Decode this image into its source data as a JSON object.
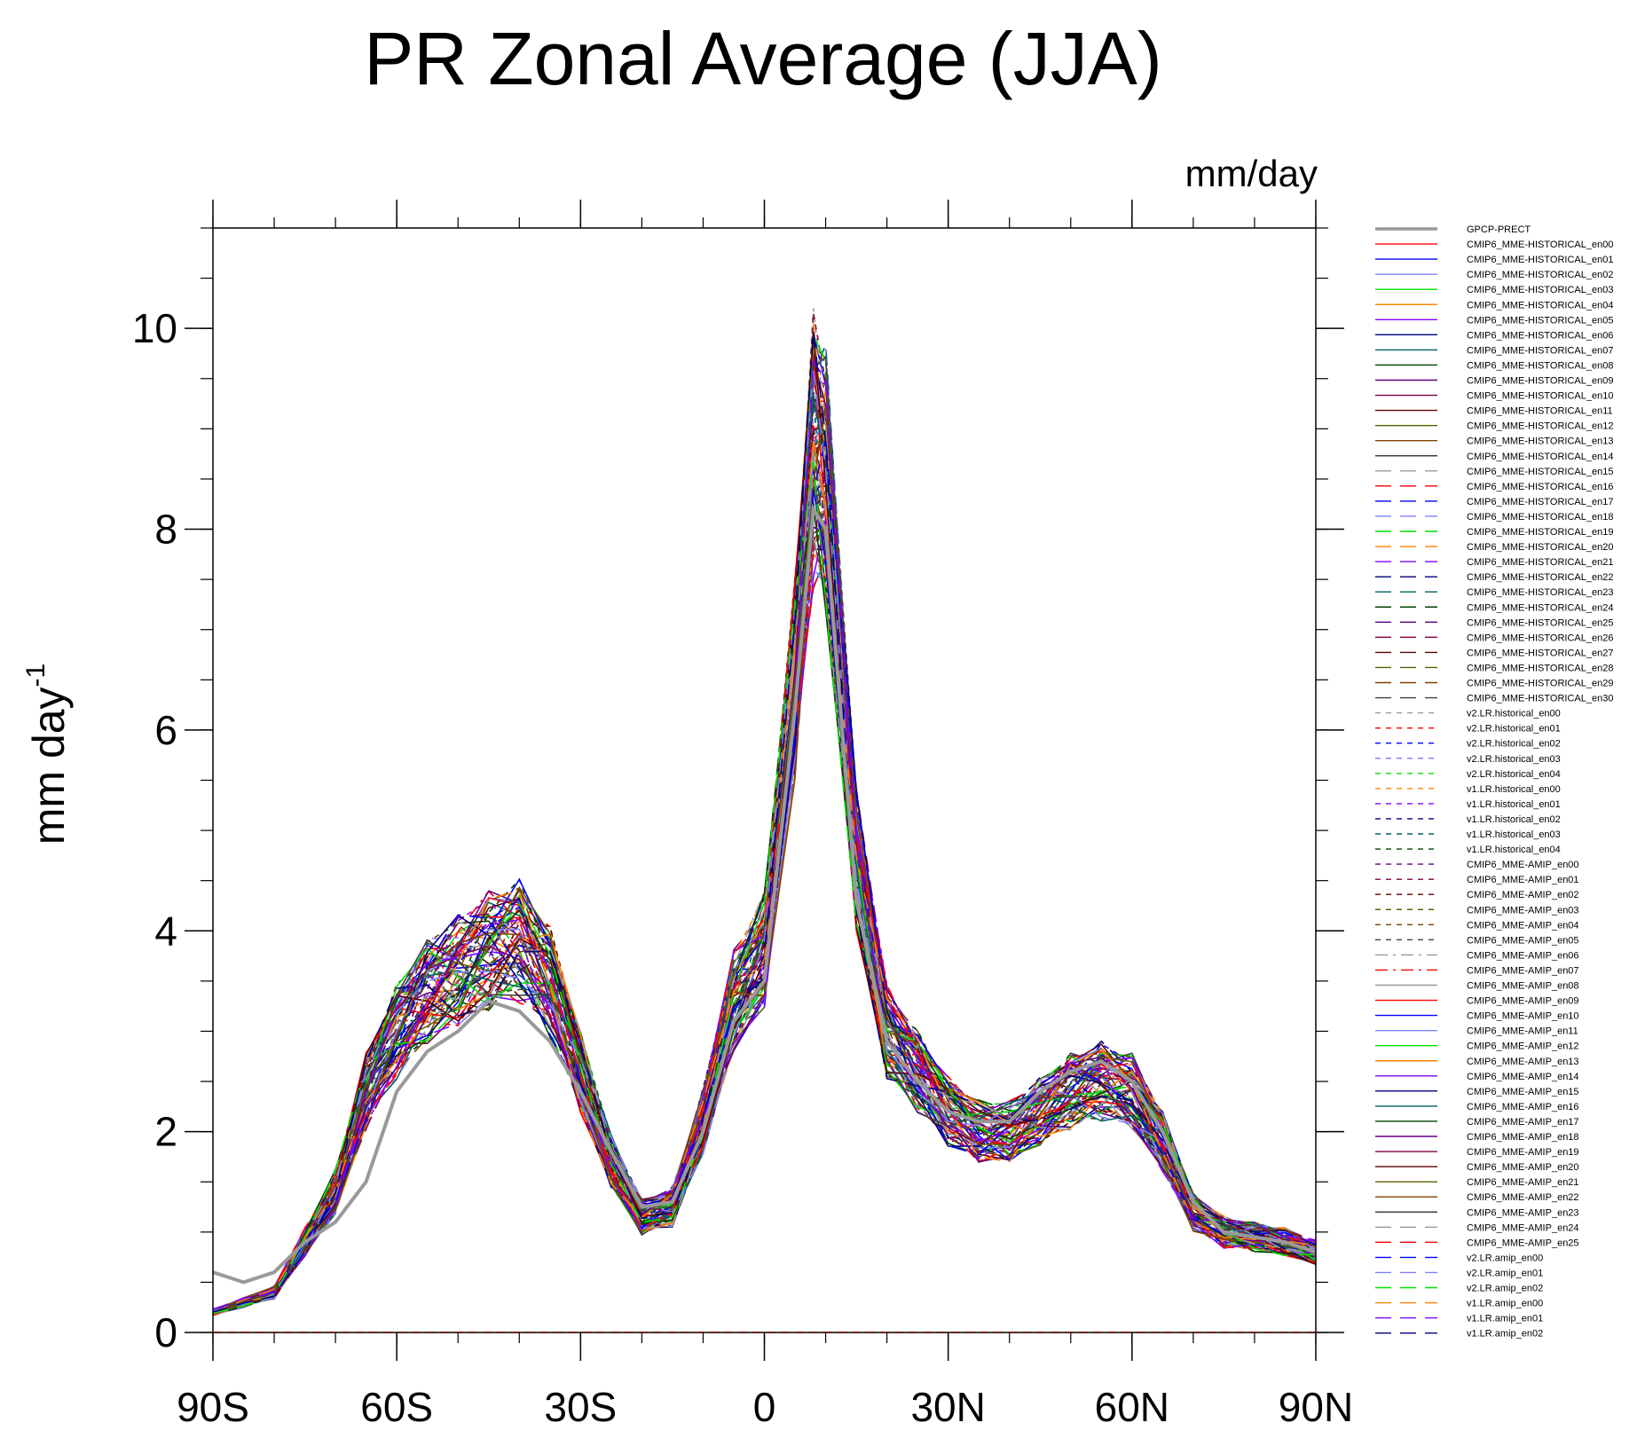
{
  "chart_data": {
    "type": "line",
    "title": "PR Zonal Average (JJA)",
    "units": "mm/day",
    "ylabel": "mm day",
    "ylabel_exponent": "-1",
    "xlabel": "",
    "xlim": [
      -90,
      90
    ],
    "ylim": [
      0,
      11
    ],
    "x_ticks": [
      {
        "value": -90,
        "label": "90S"
      },
      {
        "value": -60,
        "label": "60S"
      },
      {
        "value": -30,
        "label": "30S"
      },
      {
        "value": 0,
        "label": "0"
      },
      {
        "value": 30,
        "label": "30N"
      },
      {
        "value": 60,
        "label": "60N"
      },
      {
        "value": 90,
        "label": "90N"
      }
    ],
    "y_ticks": [
      {
        "value": 0,
        "label": "0"
      },
      {
        "value": 2,
        "label": "2"
      },
      {
        "value": 4,
        "label": "4"
      },
      {
        "value": 6,
        "label": "6"
      },
      {
        "value": 8,
        "label": "8"
      },
      {
        "value": 10,
        "label": "10"
      }
    ],
    "x": [
      -90,
      -85,
      -80,
      -75,
      -70,
      -65,
      -60,
      -55,
      -50,
      -45,
      -40,
      -35,
      -30,
      -25,
      -20,
      -15,
      -10,
      -5,
      0,
      5,
      8,
      10,
      15,
      20,
      25,
      30,
      35,
      40,
      45,
      50,
      55,
      60,
      65,
      70,
      75,
      80,
      85,
      90
    ],
    "base_profile": [
      0.2,
      0.3,
      0.4,
      0.9,
      1.4,
      2.4,
      3.0,
      3.4,
      3.6,
      3.8,
      3.9,
      3.5,
      2.6,
      1.7,
      1.15,
      1.25,
      2.1,
      3.3,
      3.8,
      6.5,
      8.8,
      8.5,
      4.7,
      3.0,
      2.6,
      2.2,
      2.0,
      2.0,
      2.2,
      2.4,
      2.5,
      2.4,
      1.9,
      1.2,
      1.0,
      0.95,
      0.9,
      0.8
    ],
    "observation": {
      "name": "GPCP-PRECT",
      "color": "#999999",
      "values": [
        0.6,
        0.5,
        0.6,
        0.9,
        1.1,
        1.5,
        2.4,
        2.8,
        3.0,
        3.3,
        3.2,
        2.9,
        2.4,
        1.8,
        1.25,
        1.3,
        2.0,
        3.1,
        3.5,
        6.2,
        8.2,
        8.0,
        4.3,
        2.9,
        2.5,
        2.2,
        2.1,
        2.1,
        2.4,
        2.6,
        2.7,
        2.5,
        2.0,
        1.3,
        1.0,
        0.95,
        0.9,
        0.8
      ]
    },
    "series": [
      {
        "name": "CMIP6_MME-HISTORICAL_en00",
        "color": "#ff0000",
        "dash": "solid"
      },
      {
        "name": "CMIP6_MME-HISTORICAL_en01",
        "color": "#0000ff",
        "dash": "solid"
      },
      {
        "name": "CMIP6_MME-HISTORICAL_en02",
        "color": "#8080ff",
        "dash": "solid"
      },
      {
        "name": "CMIP6_MME-HISTORICAL_en03",
        "color": "#00e000",
        "dash": "solid"
      },
      {
        "name": "CMIP6_MME-HISTORICAL_en04",
        "color": "#ff8000",
        "dash": "solid"
      },
      {
        "name": "CMIP6_MME-HISTORICAL_en05",
        "color": "#8000ff",
        "dash": "solid"
      },
      {
        "name": "CMIP6_MME-HISTORICAL_en06",
        "color": "#000080",
        "dash": "solid"
      },
      {
        "name": "CMIP6_MME-HISTORICAL_en07",
        "color": "#006060",
        "dash": "solid"
      },
      {
        "name": "CMIP6_MME-HISTORICAL_en08",
        "color": "#004000",
        "dash": "solid"
      },
      {
        "name": "CMIP6_MME-HISTORICAL_en09",
        "color": "#600080",
        "dash": "solid"
      },
      {
        "name": "CMIP6_MME-HISTORICAL_en10",
        "color": "#800040",
        "dash": "solid"
      },
      {
        "name": "CMIP6_MME-HISTORICAL_en11",
        "color": "#600000",
        "dash": "solid"
      },
      {
        "name": "CMIP6_MME-HISTORICAL_en12",
        "color": "#606000",
        "dash": "solid"
      },
      {
        "name": "CMIP6_MME-HISTORICAL_en13",
        "color": "#804000",
        "dash": "solid"
      },
      {
        "name": "CMIP6_MME-HISTORICAL_en14",
        "color": "#404040",
        "dash": "solid"
      },
      {
        "name": "CMIP6_MME-HISTORICAL_en15",
        "color": "#999999",
        "dash": "long"
      },
      {
        "name": "CMIP6_MME-HISTORICAL_en16",
        "color": "#ff0000",
        "dash": "long"
      },
      {
        "name": "CMIP6_MME-HISTORICAL_en17",
        "color": "#0000ff",
        "dash": "long"
      },
      {
        "name": "CMIP6_MME-HISTORICAL_en18",
        "color": "#8080ff",
        "dash": "long"
      },
      {
        "name": "CMIP6_MME-HISTORICAL_en19",
        "color": "#00e000",
        "dash": "long"
      },
      {
        "name": "CMIP6_MME-HISTORICAL_en20",
        "color": "#ff8000",
        "dash": "long"
      },
      {
        "name": "CMIP6_MME-HISTORICAL_en21",
        "color": "#8000ff",
        "dash": "long"
      },
      {
        "name": "CMIP6_MME-HISTORICAL_en22",
        "color": "#000080",
        "dash": "long"
      },
      {
        "name": "CMIP6_MME-HISTORICAL_en23",
        "color": "#006060",
        "dash": "long"
      },
      {
        "name": "CMIP6_MME-HISTORICAL_en24",
        "color": "#004000",
        "dash": "long"
      },
      {
        "name": "CMIP6_MME-HISTORICAL_en25",
        "color": "#600080",
        "dash": "long"
      },
      {
        "name": "CMIP6_MME-HISTORICAL_en26",
        "color": "#800040",
        "dash": "long"
      },
      {
        "name": "CMIP6_MME-HISTORICAL_en27",
        "color": "#600000",
        "dash": "long"
      },
      {
        "name": "CMIP6_MME-HISTORICAL_en28",
        "color": "#606000",
        "dash": "long"
      },
      {
        "name": "CMIP6_MME-HISTORICAL_en29",
        "color": "#804000",
        "dash": "long"
      },
      {
        "name": "CMIP6_MME-HISTORICAL_en30",
        "color": "#404040",
        "dash": "long"
      },
      {
        "name": "v2.LR.historical_en00",
        "color": "#999999",
        "dash": "short"
      },
      {
        "name": "v2.LR.historical_en01",
        "color": "#ff0000",
        "dash": "short"
      },
      {
        "name": "v2.LR.historical_en02",
        "color": "#0000ff",
        "dash": "short"
      },
      {
        "name": "v2.LR.historical_en03",
        "color": "#8080ff",
        "dash": "short"
      },
      {
        "name": "v2.LR.historical_en04",
        "color": "#00e000",
        "dash": "short"
      },
      {
        "name": "v1.LR.historical_en00",
        "color": "#ff8000",
        "dash": "short"
      },
      {
        "name": "v1.LR.historical_en01",
        "color": "#8000ff",
        "dash": "short"
      },
      {
        "name": "v1.LR.historical_en02",
        "color": "#000080",
        "dash": "short"
      },
      {
        "name": "v1.LR.historical_en03",
        "color": "#006060",
        "dash": "short"
      },
      {
        "name": "v1.LR.historical_en04",
        "color": "#004000",
        "dash": "short"
      },
      {
        "name": "CMIP6_MME-AMIP_en00",
        "color": "#600080",
        "dash": "short"
      },
      {
        "name": "CMIP6_MME-AMIP_en01",
        "color": "#800040",
        "dash": "short"
      },
      {
        "name": "CMIP6_MME-AMIP_en02",
        "color": "#600000",
        "dash": "short"
      },
      {
        "name": "CMIP6_MME-AMIP_en03",
        "color": "#606000",
        "dash": "short"
      },
      {
        "name": "CMIP6_MME-AMIP_en04",
        "color": "#804000",
        "dash": "short"
      },
      {
        "name": "CMIP6_MME-AMIP_en05",
        "color": "#404040",
        "dash": "short"
      },
      {
        "name": "CMIP6_MME-AMIP_en06",
        "color": "#999999",
        "dash": "dashdot"
      },
      {
        "name": "CMIP6_MME-AMIP_en07",
        "color": "#ff0000",
        "dash": "dashdot"
      },
      {
        "name": "CMIP6_MME-AMIP_en08",
        "color": "#999999",
        "dash": "solid"
      },
      {
        "name": "CMIP6_MME-AMIP_en09",
        "color": "#ff0000",
        "dash": "solid"
      },
      {
        "name": "CMIP6_MME-AMIP_en10",
        "color": "#0000ff",
        "dash": "solid"
      },
      {
        "name": "CMIP6_MME-AMIP_en11",
        "color": "#8080ff",
        "dash": "solid"
      },
      {
        "name": "CMIP6_MME-AMIP_en12",
        "color": "#00e000",
        "dash": "solid"
      },
      {
        "name": "CMIP6_MME-AMIP_en13",
        "color": "#ff8000",
        "dash": "solid"
      },
      {
        "name": "CMIP6_MME-AMIP_en14",
        "color": "#8000ff",
        "dash": "solid"
      },
      {
        "name": "CMIP6_MME-AMIP_en15",
        "color": "#000080",
        "dash": "solid"
      },
      {
        "name": "CMIP6_MME-AMIP_en16",
        "color": "#006060",
        "dash": "solid"
      },
      {
        "name": "CMIP6_MME-AMIP_en17",
        "color": "#004000",
        "dash": "solid"
      },
      {
        "name": "CMIP6_MME-AMIP_en18",
        "color": "#600080",
        "dash": "solid"
      },
      {
        "name": "CMIP6_MME-AMIP_en19",
        "color": "#800040",
        "dash": "solid"
      },
      {
        "name": "CMIP6_MME-AMIP_en20",
        "color": "#600000",
        "dash": "solid"
      },
      {
        "name": "CMIP6_MME-AMIP_en21",
        "color": "#606000",
        "dash": "solid"
      },
      {
        "name": "CMIP6_MME-AMIP_en22",
        "color": "#804000",
        "dash": "solid"
      },
      {
        "name": "CMIP6_MME-AMIP_en23",
        "color": "#404040",
        "dash": "solid"
      },
      {
        "name": "CMIP6_MME-AMIP_en24",
        "color": "#999999",
        "dash": "long"
      },
      {
        "name": "CMIP6_MME-AMIP_en25",
        "color": "#ff0000",
        "dash": "long"
      },
      {
        "name": "v2.LR.amip_en00",
        "color": "#0000ff",
        "dash": "long"
      },
      {
        "name": "v2.LR.amip_en01",
        "color": "#8080ff",
        "dash": "long"
      },
      {
        "name": "v2.LR.amip_en02",
        "color": "#00e000",
        "dash": "long"
      },
      {
        "name": "v1.LR.amip_en00",
        "color": "#ff8000",
        "dash": "long"
      },
      {
        "name": "v1.LR.amip_en01",
        "color": "#8000ff",
        "dash": "long"
      },
      {
        "name": "v1.LR.amip_en02",
        "color": "#000080",
        "dash": "long"
      }
    ]
  }
}
